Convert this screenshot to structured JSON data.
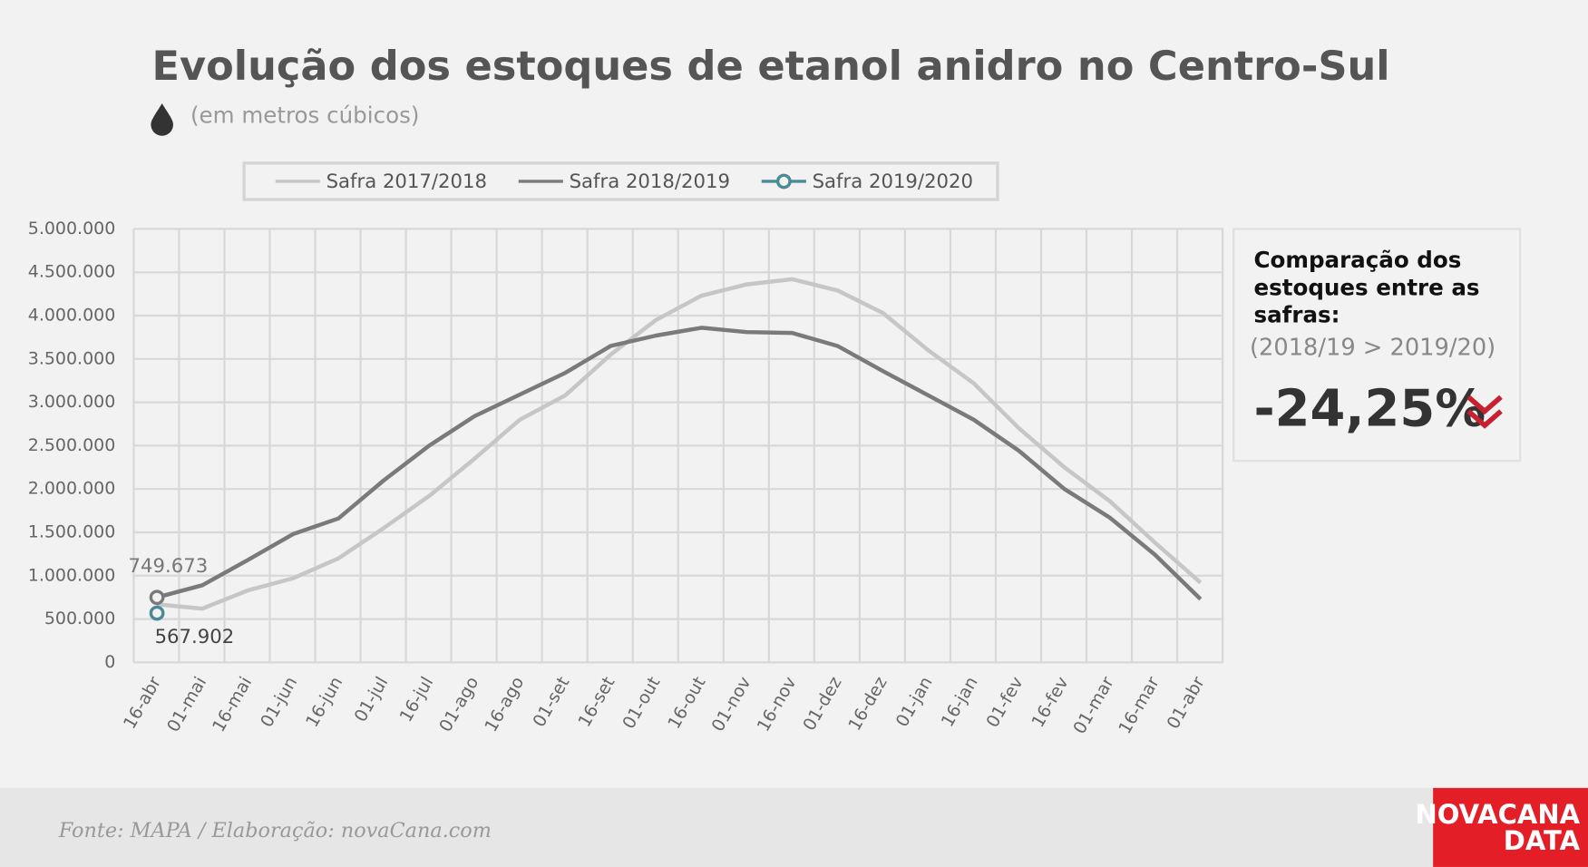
{
  "chart_data": {
    "type": "line",
    "title": "Evolução dos estoques de etanol anidro no Centro-Sul",
    "subtitle": "(em metros cúbicos)",
    "categories": [
      "16-abr",
      "01-mai",
      "16-mai",
      "01-jun",
      "16-jun",
      "01-jul",
      "16-jul",
      "01-ago",
      "16-ago",
      "01-set",
      "16-set",
      "01-out",
      "16-out",
      "01-nov",
      "16-nov",
      "01-dez",
      "16-dez",
      "01-jan",
      "16-jan",
      "01-fev",
      "16-fev",
      "01-mar",
      "16-mar",
      "01-abr"
    ],
    "series": [
      {
        "name": "Safra 2017/2018",
        "color": "#c6c6c6",
        "values": [
          670000,
          620000,
          830000,
          970000,
          1200000,
          1550000,
          1920000,
          2350000,
          2800000,
          3080000,
          3550000,
          3950000,
          4230000,
          4360000,
          4420000,
          4290000,
          4030000,
          3600000,
          3220000,
          2700000,
          2250000,
          1860000,
          1380000,
          920000
        ]
      },
      {
        "name": "Safra 2018/2019",
        "color": "#7a7a7a",
        "values": [
          749673,
          890000,
          1180000,
          1480000,
          1660000,
          2100000,
          2500000,
          2840000,
          3090000,
          3340000,
          3650000,
          3770000,
          3860000,
          3810000,
          3800000,
          3650000,
          3360000,
          3080000,
          2800000,
          2440000,
          2000000,
          1670000,
          1240000,
          730000
        ],
        "value_labels": [
          "749.673",
          null,
          null,
          null,
          null,
          null,
          null,
          null,
          null,
          null,
          null,
          null,
          null,
          null,
          null,
          null,
          null,
          null,
          null,
          null,
          null,
          null,
          null,
          null
        ]
      },
      {
        "name": "Safra 2019/2020",
        "color": "#4a8a96",
        "markers": true,
        "values": [
          567902,
          null,
          null,
          null,
          null,
          null,
          null,
          null,
          null,
          null,
          null,
          null,
          null,
          null,
          null,
          null,
          null,
          null,
          null,
          null,
          null,
          null,
          null,
          null
        ],
        "value_labels": [
          "567.902",
          null,
          null,
          null,
          null,
          null,
          null,
          null,
          null,
          null,
          null,
          null,
          null,
          null,
          null,
          null,
          null,
          null,
          null,
          null,
          null,
          null,
          null,
          null
        ]
      }
    ],
    "ylim": [
      0,
      5000000
    ],
    "yticks": [
      0,
      {
        "value": 500000,
        "label": "500.000"
      },
      {
        "value": 1000000,
        "label": "1.000.000"
      },
      {
        "value": 1500000,
        "label": "1.500.000"
      },
      {
        "value": 2000000,
        "label": "2.000.000"
      },
      {
        "value": 2500000,
        "label": "2.500.000"
      },
      {
        "value": 3000000,
        "label": "3.000.000"
      },
      {
        "value": 3500000,
        "label": "3.500.000"
      },
      {
        "value": 4000000,
        "label": "4.000.000"
      },
      {
        "value": 4500000,
        "label": "4.500.000"
      },
      {
        "value": 5000000,
        "label": "5.000.000"
      }
    ],
    "grid": true,
    "legend": "top",
    "panel": {
      "title_lines": [
        "Comparação dos",
        "estoques entre as",
        "safras:"
      ],
      "subtitle": "(2018/19 > 2019/20)",
      "value": "-24,25%"
    },
    "source": "Fonte: MAPA  / Elaboração: novaCana.com",
    "logo": [
      "NOVACANA",
      "DATA"
    ]
  }
}
